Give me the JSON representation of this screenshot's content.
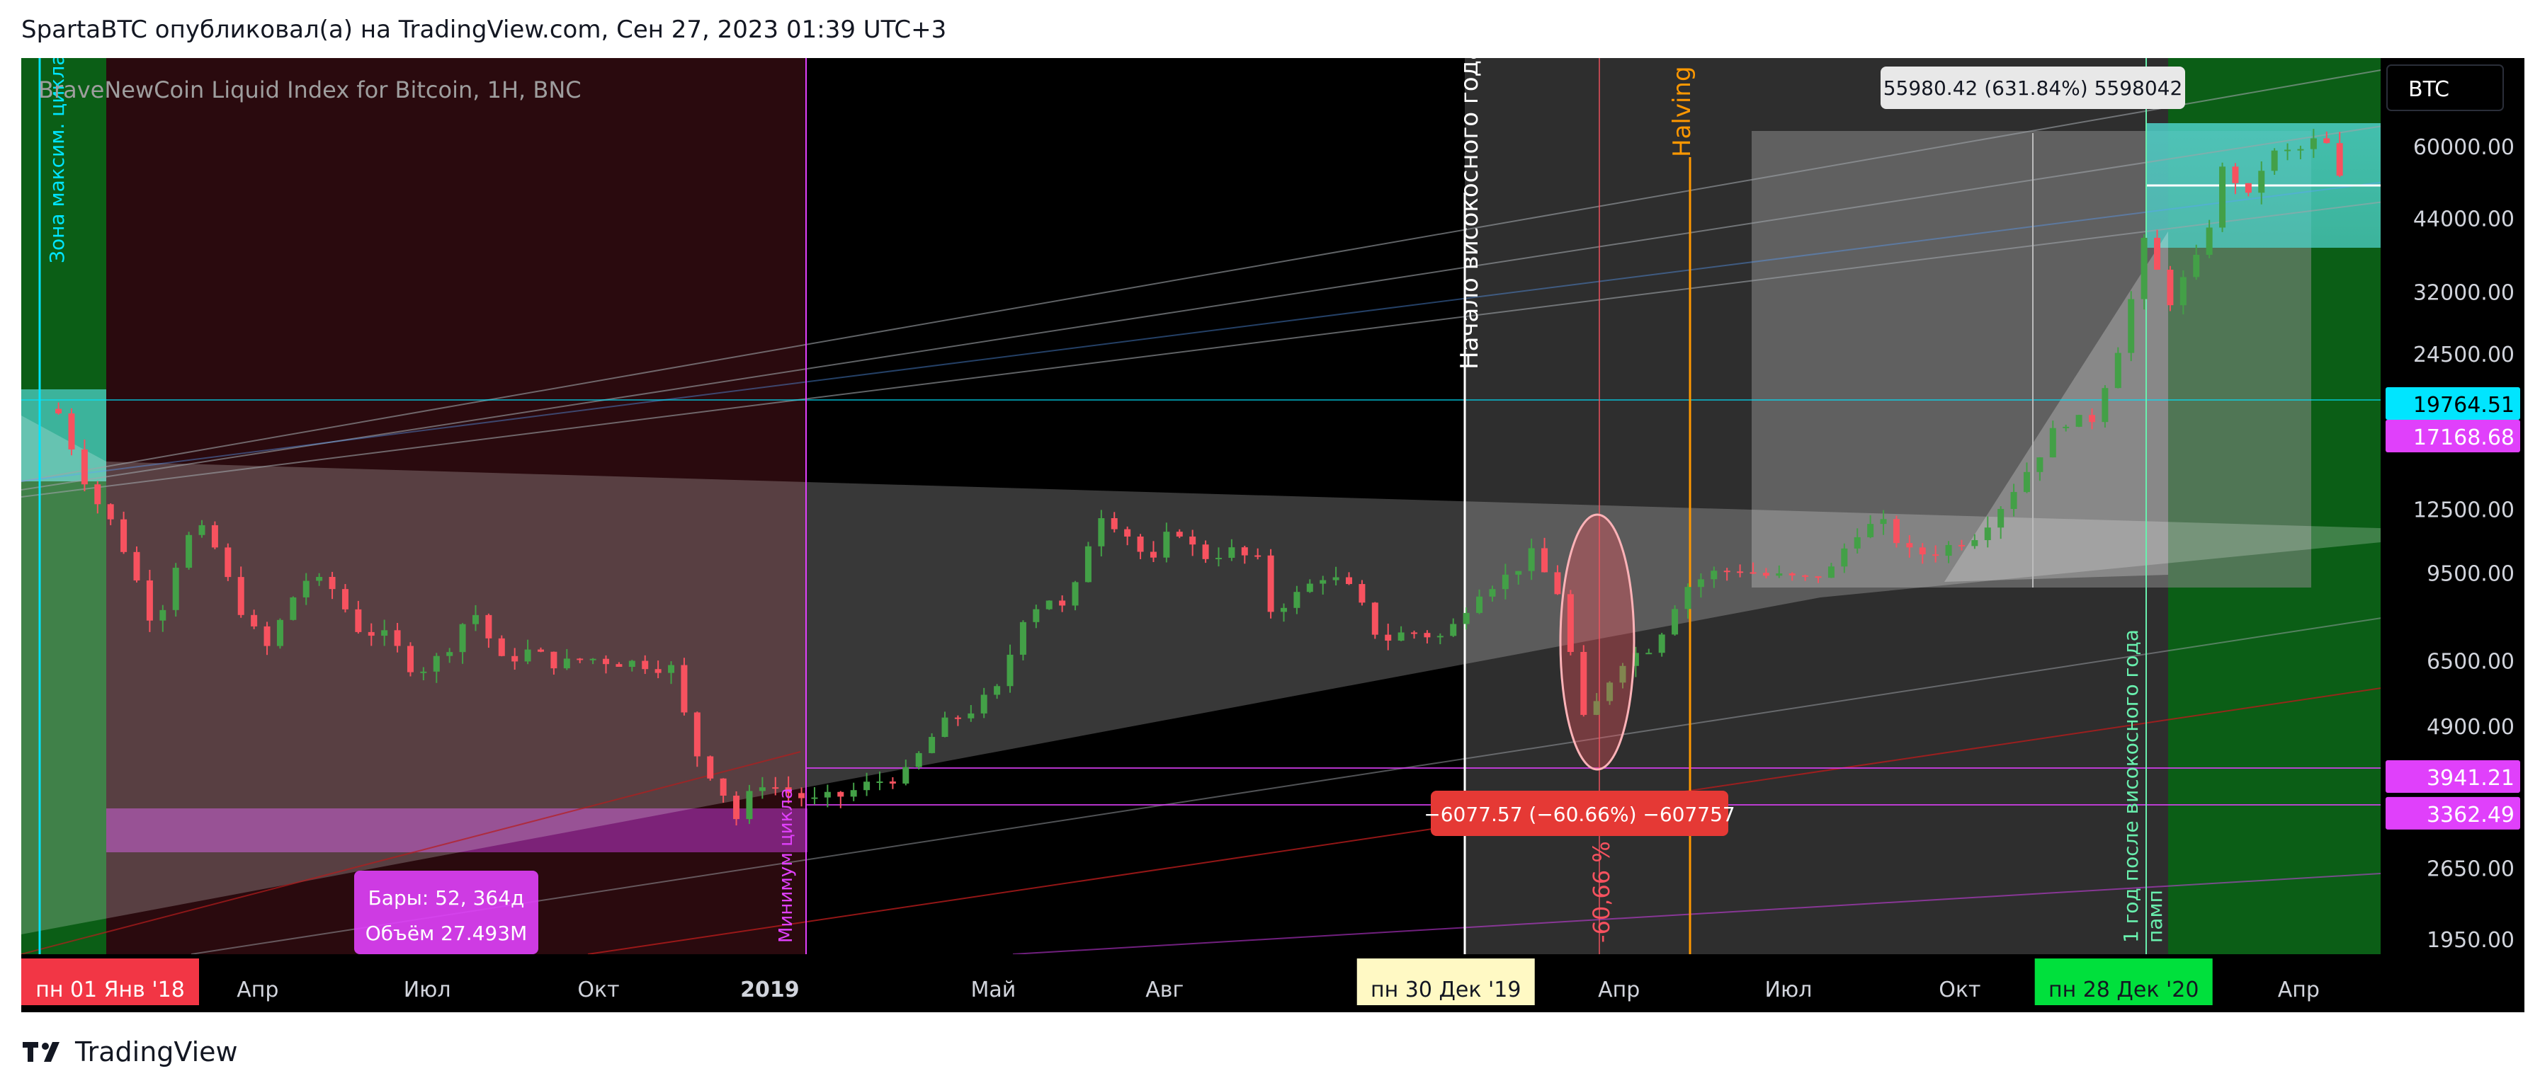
{
  "header": {
    "publish_line": "SpartaBTC опубликовал(а) на TradingView.com, Сен 27, 2023 01:39 UTC+3"
  },
  "chart_header": {
    "symbol_line": "BraveNewCoin Liquid Index for Bitcoin, 1H, BNC",
    "symbol_badge": "BTC"
  },
  "annotations": {
    "zone_max_cycle": "Зона максим. цикла",
    "leap_year_start": "Начало високосного года",
    "halving": "Halving",
    "min_cycle": "Минимум цикла",
    "year_after_leap": "1 год после високосного года",
    "pump": "памп",
    "drop_percent": "-60,66 %",
    "measure_drop": "−6077.57 (−60.66%) −607757",
    "measure_rise": "55980.42 (631.84%) 5598042",
    "bars_label": "Бары: 52, 364д",
    "volume_label": "Объём 27.493M"
  },
  "footer": {
    "brand": "TradingView"
  },
  "colors": {
    "up": "#26a69a",
    "up_green": "#43a047",
    "down": "#f7525f",
    "cyan": "#00e5ff",
    "magenta": "#e040fb",
    "dark_red_zone": "#2a0a0e",
    "green_zone": "#0b5e16",
    "gray_zone": "#2e2e2e",
    "halving": "#ff9800"
  },
  "chart_data": {
    "type": "candlestick",
    "scale": "log",
    "ylim": [
      1700,
      80000
    ],
    "y_ticks": [
      60000,
      44000,
      32000,
      24500,
      12500,
      9500,
      6500,
      4900,
      2650,
      1950
    ],
    "y_tick_labels": [
      "60000.00",
      "44000.00",
      "32000.00",
      "24500.00",
      "12500.00",
      "9500.00",
      "6500.00",
      "4900.00",
      "2650.00",
      "1950.00"
    ],
    "x_ticks": [
      {
        "date": "2018-01-01",
        "label": "пн 01 Янв '18",
        "style": "badge-red"
      },
      {
        "date": "2018-04-01",
        "label": "Апр",
        "style": "normal"
      },
      {
        "date": "2018-07-01",
        "label": "Июл",
        "style": "normal"
      },
      {
        "date": "2018-10-01",
        "label": "Окт",
        "style": "normal"
      },
      {
        "date": "2019-01-01",
        "label": "2019",
        "style": "bold"
      },
      {
        "date": "2019-05-01",
        "label": "Май",
        "style": "normal"
      },
      {
        "date": "2019-08-01",
        "label": "Авг",
        "style": "normal"
      },
      {
        "date": "2019-12-30",
        "label": "пн 30 Дек '19",
        "style": "badge-yellow"
      },
      {
        "date": "2020-04-01",
        "label": "Апр",
        "style": "normal"
      },
      {
        "date": "2020-07-01",
        "label": "Июл",
        "style": "normal"
      },
      {
        "date": "2020-10-01",
        "label": "Окт",
        "style": "normal"
      },
      {
        "date": "2020-12-28",
        "label": "пн 28 Дек '20",
        "style": "badge-green"
      },
      {
        "date": "2021-04-01",
        "label": "Апр",
        "style": "normal"
      }
    ],
    "price_labels": [
      {
        "value": 19764.51,
        "label": "19764.51",
        "color": "#00e5ff"
      },
      {
        "value": 17168.68,
        "label": "17168.68",
        "color": "#e040fb"
      },
      {
        "value": 3941.21,
        "label": "3941.21",
        "color": "#e040fb"
      },
      {
        "value": 3362.49,
        "label": "3362.49",
        "color": "#e040fb"
      }
    ],
    "price_path": [
      [
        "2017-12-15",
        19000
      ],
      [
        "2018-01-01",
        13500
      ],
      [
        "2018-01-15",
        11500
      ],
      [
        "2018-02-05",
        7500
      ],
      [
        "2018-02-20",
        11000
      ],
      [
        "2018-03-05",
        11500
      ],
      [
        "2018-03-20",
        8500
      ],
      [
        "2018-04-05",
        6800
      ],
      [
        "2018-04-25",
        9300
      ],
      [
        "2018-05-10",
        9000
      ],
      [
        "2018-05-25",
        7500
      ],
      [
        "2018-06-10",
        7200
      ],
      [
        "2018-06-25",
        6200
      ],
      [
        "2018-07-10",
        6700
      ],
      [
        "2018-07-25",
        8200
      ],
      [
        "2018-08-10",
        6500
      ],
      [
        "2018-08-25",
        6800
      ],
      [
        "2018-09-10",
        6400
      ],
      [
        "2018-09-25",
        6600
      ],
      [
        "2018-10-10",
        6500
      ],
      [
        "2018-10-25",
        6450
      ],
      [
        "2018-11-10",
        6300
      ],
      [
        "2018-11-20",
        4500
      ],
      [
        "2018-12-05",
        3800
      ],
      [
        "2018-12-15",
        3250
      ],
      [
        "2018-12-25",
        3900
      ],
      [
        "2019-01-10",
        3700
      ],
      [
        "2019-01-25",
        3550
      ],
      [
        "2019-02-10",
        3650
      ],
      [
        "2019-02-25",
        3850
      ],
      [
        "2019-03-15",
        4000
      ],
      [
        "2019-04-02",
        4900
      ],
      [
        "2019-04-20",
        5300
      ],
      [
        "2019-05-05",
        5800
      ],
      [
        "2019-05-15",
        7800
      ],
      [
        "2019-05-30",
        8600
      ],
      [
        "2019-06-10",
        8000
      ],
      [
        "2019-06-26",
        12500
      ],
      [
        "2019-07-10",
        11500
      ],
      [
        "2019-07-25",
        9800
      ],
      [
        "2019-08-06",
        11800
      ],
      [
        "2019-08-20",
        10200
      ],
      [
        "2019-09-05",
        10500
      ],
      [
        "2019-09-20",
        10000
      ],
      [
        "2019-09-26",
        8100
      ],
      [
        "2019-10-10",
        8600
      ],
      [
        "2019-10-26",
        9500
      ],
      [
        "2019-11-10",
        8800
      ],
      [
        "2019-11-25",
        7100
      ],
      [
        "2019-12-10",
        7400
      ],
      [
        "2019-12-30",
        7200
      ],
      [
        "2020-01-15",
        8800
      ],
      [
        "2020-02-01",
        9400
      ],
      [
        "2020-02-14",
        10300
      ],
      [
        "2020-03-01",
        8600
      ],
      [
        "2020-03-12",
        5000
      ],
      [
        "2020-03-16",
        5100
      ],
      [
        "2020-04-01",
        6500
      ],
      [
        "2020-04-20",
        7000
      ],
      [
        "2020-05-05",
        8900
      ],
      [
        "2020-05-20",
        9500
      ],
      [
        "2020-06-05",
        9700
      ],
      [
        "2020-06-20",
        9400
      ],
      [
        "2020-07-10",
        9250
      ],
      [
        "2020-07-25",
        9700
      ],
      [
        "2020-08-05",
        11400
      ],
      [
        "2020-08-20",
        11800
      ],
      [
        "2020-09-05",
        10300
      ],
      [
        "2020-09-20",
        10500
      ],
      [
        "2020-10-10",
        11300
      ],
      [
        "2020-10-25",
        13000
      ],
      [
        "2020-11-10",
        15500
      ],
      [
        "2020-11-25",
        18500
      ],
      [
        "2020-12-10",
        18200
      ],
      [
        "2020-12-28",
        27000
      ],
      [
        "2021-01-08",
        39500
      ],
      [
        "2021-01-22",
        31000
      ],
      [
        "2021-02-08",
        38000
      ],
      [
        "2021-02-20",
        56000
      ],
      [
        "2021-03-05",
        48000
      ],
      [
        "2021-03-15",
        58000
      ],
      [
        "2021-04-01",
        59000
      ],
      [
        "2021-04-14",
        63000
      ],
      [
        "2021-04-25",
        50000
      ]
    ]
  }
}
